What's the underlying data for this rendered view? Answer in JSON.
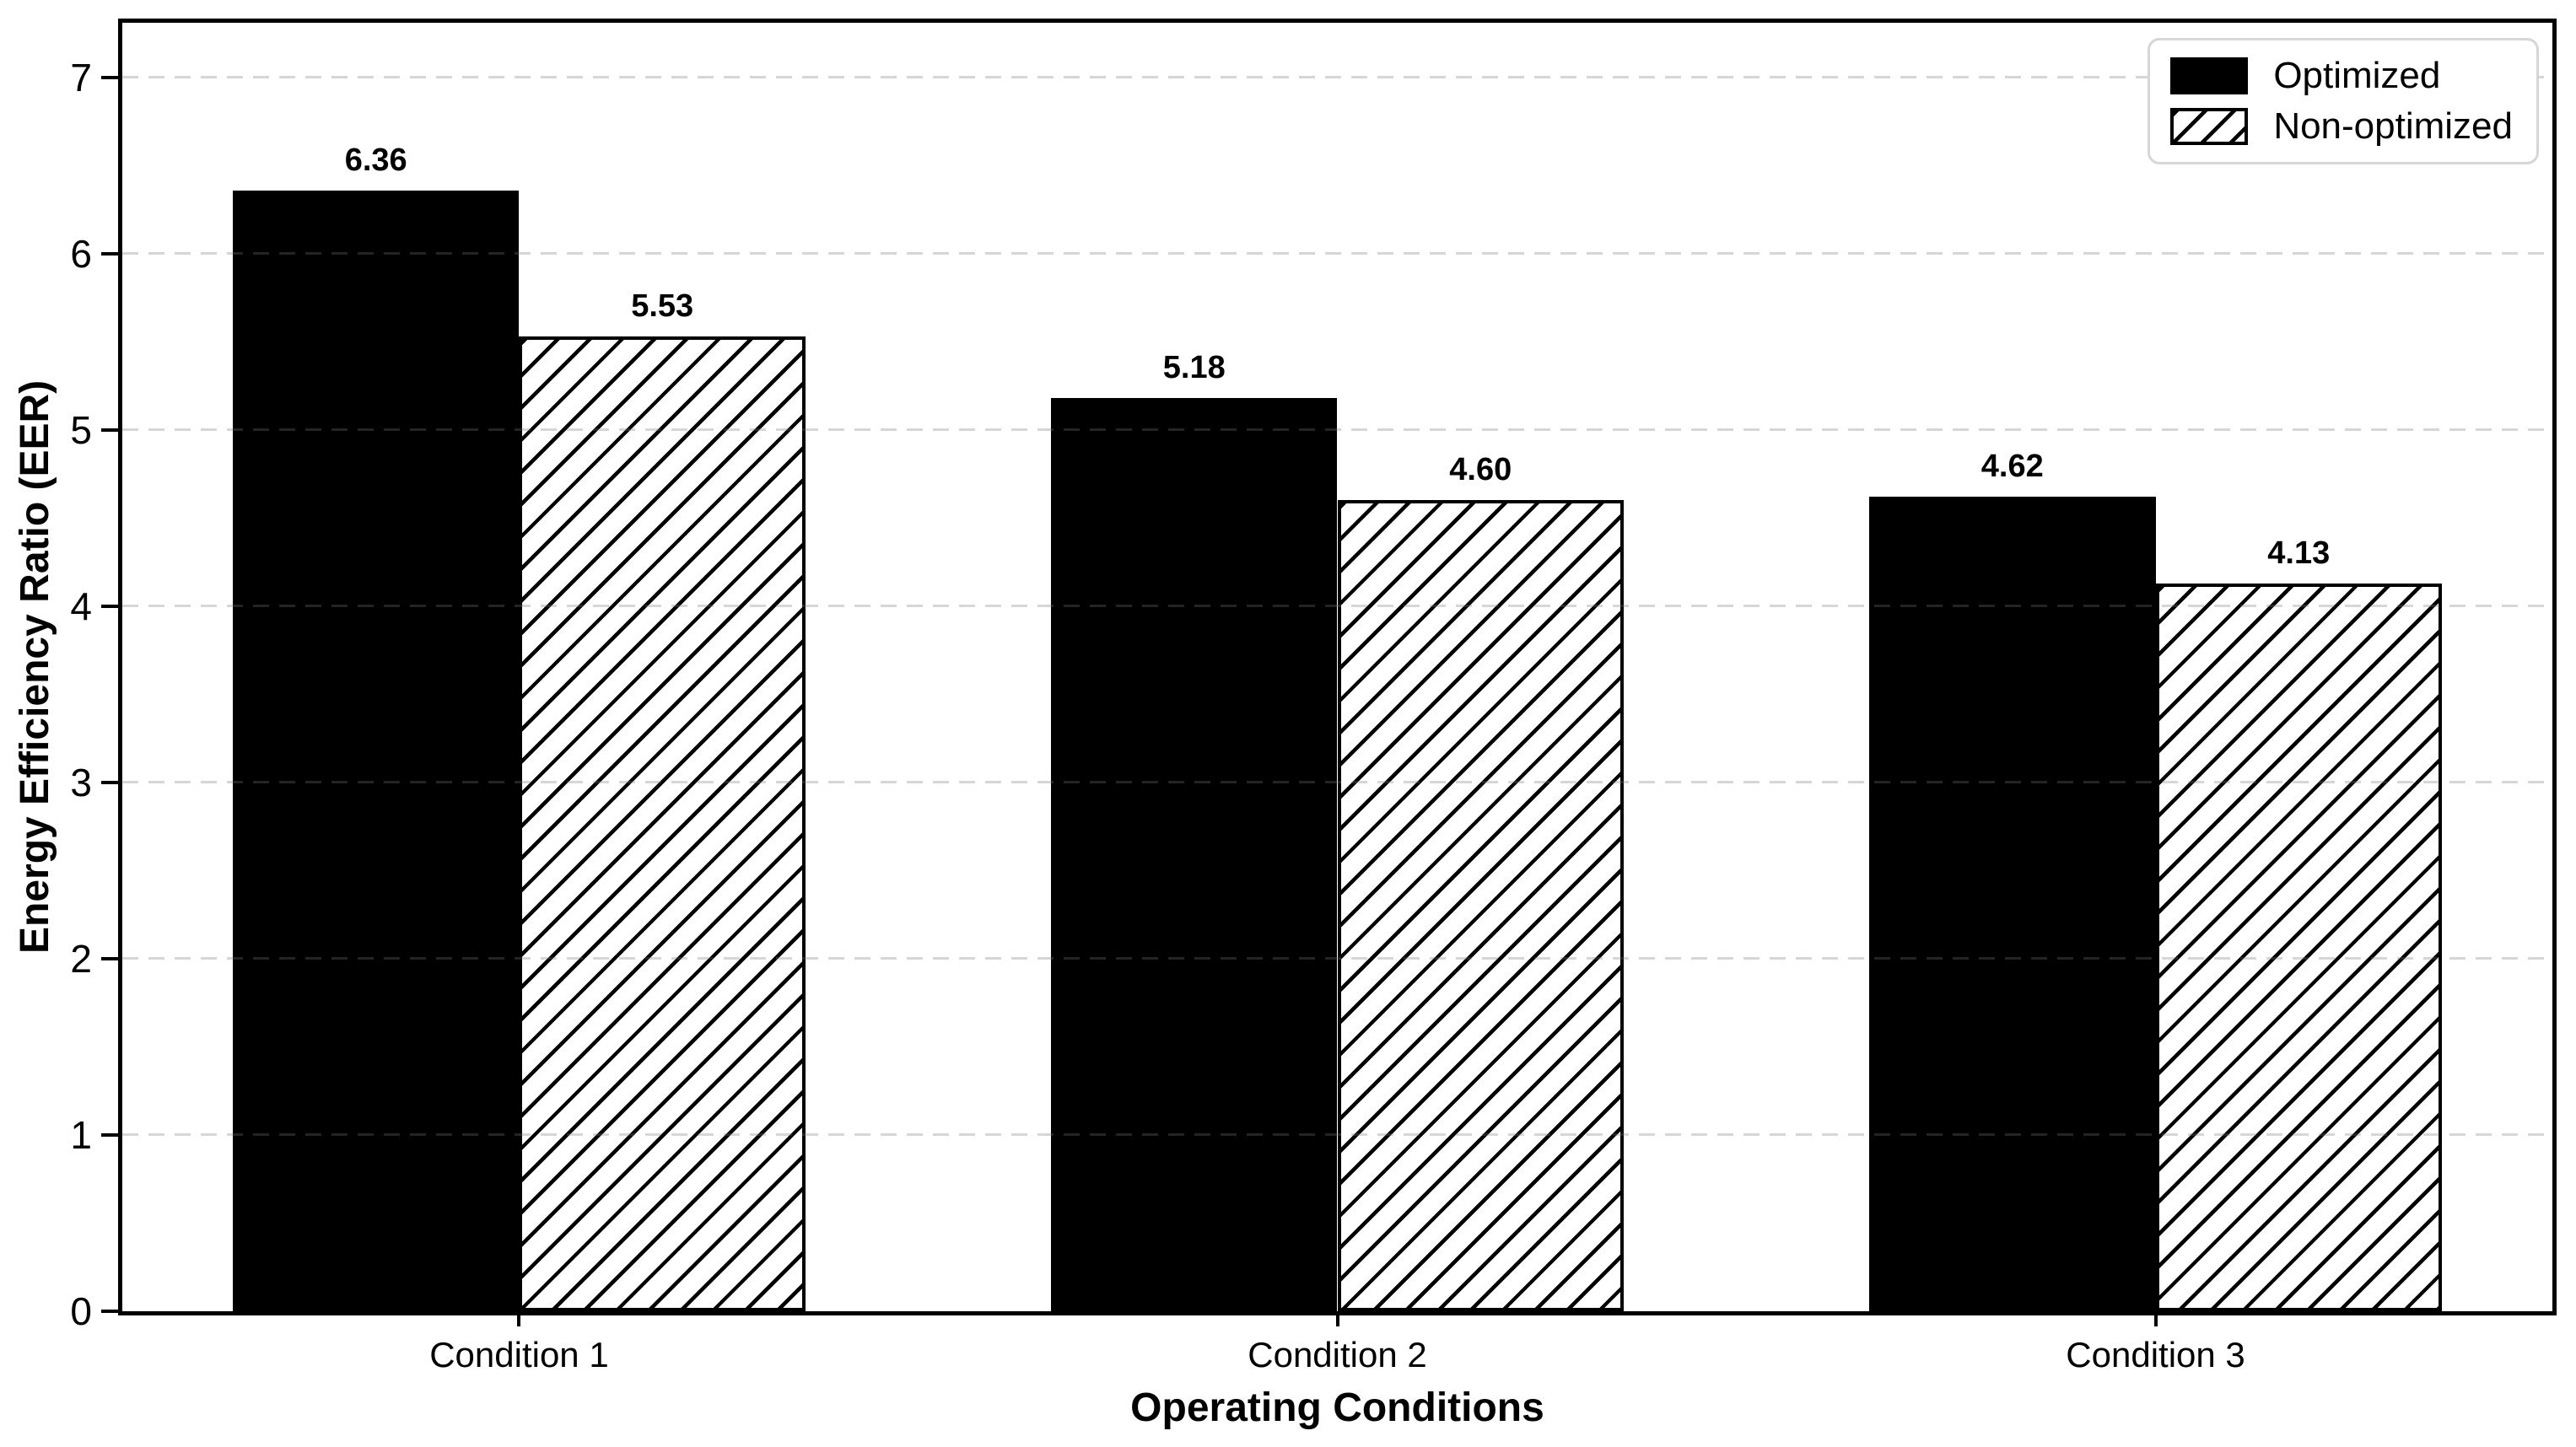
{
  "chart_data": {
    "type": "bar",
    "title": "",
    "xlabel": "Operating Conditions",
    "ylabel": "Energy Efficiency Ratio (EER)",
    "categories": [
      "Condition 1",
      "Condition 2",
      "Condition 3"
    ],
    "series": [
      {
        "name": "Optimized",
        "fill": "solid-black",
        "values": [
          6.36,
          5.18,
          4.62
        ]
      },
      {
        "name": "Non-optimized",
        "fill": "diagonal-hatch",
        "values": [
          5.53,
          4.6,
          4.13
        ]
      }
    ],
    "value_label_format": ".2f",
    "yticks": [
      0,
      1,
      2,
      3,
      4,
      5,
      6,
      7
    ],
    "ylim": [
      0,
      7.31
    ],
    "bar_width": 0.35,
    "grid": {
      "axis": "y",
      "style": "dashed",
      "on": true
    },
    "legend": {
      "position": "upper-right"
    },
    "colors": {
      "bar_fill": "#000000",
      "bar_edge": "#000000",
      "background": "#ffffff",
      "spine": "#000000",
      "grid": "#dddddd",
      "legend_border": "#d6d6d6",
      "text": "#000000"
    }
  }
}
